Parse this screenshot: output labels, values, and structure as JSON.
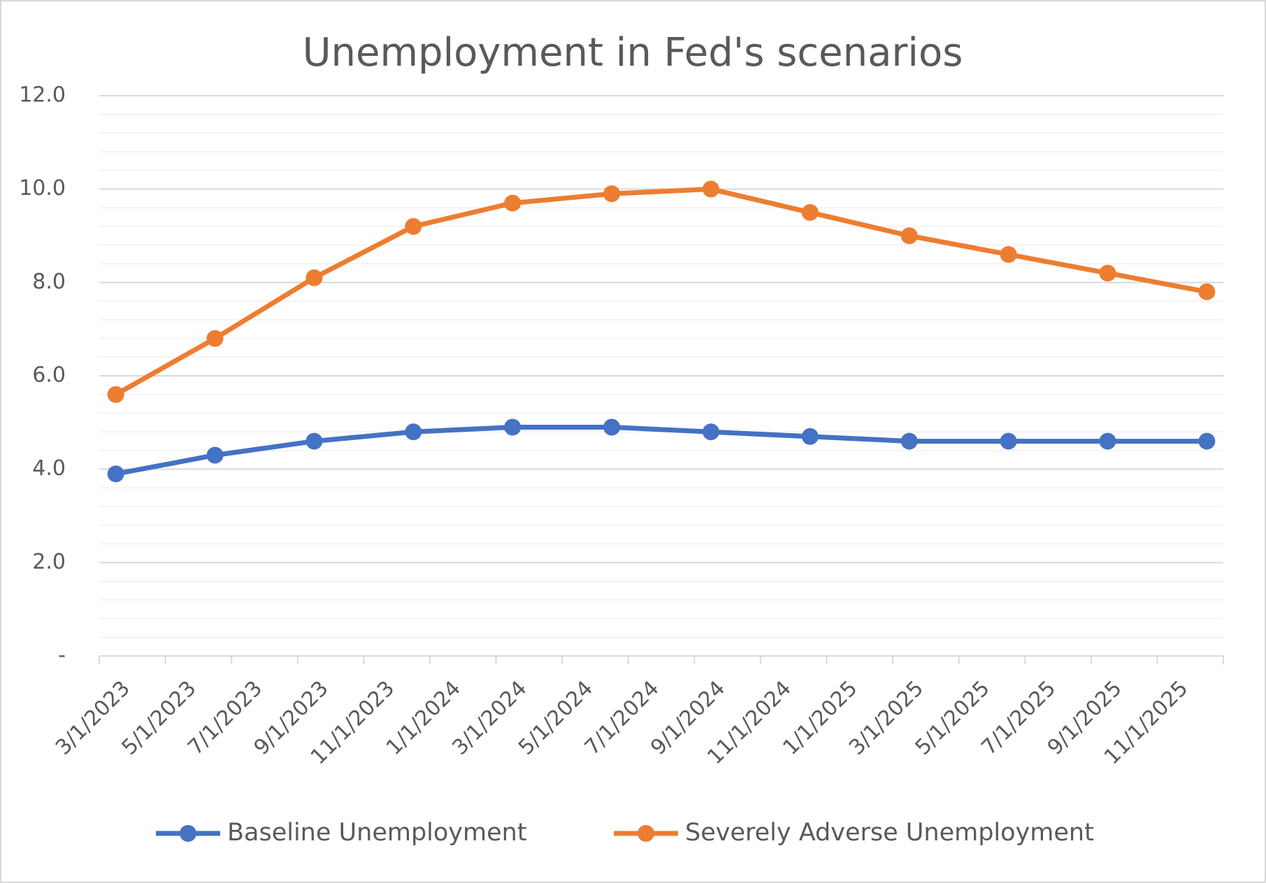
{
  "chart_data": {
    "type": "line",
    "title": "Unemployment in Fed's scenarios",
    "x": [
      "3/1/2023",
      "6/1/2023",
      "9/1/2023",
      "12/1/2023",
      "3/1/2024",
      "6/1/2024",
      "9/1/2024",
      "12/1/2024",
      "3/1/2025",
      "6/1/2025",
      "9/1/2025",
      "12/1/2025"
    ],
    "xlim": [
      "3/1/2023",
      "1/1/2026"
    ],
    "xticks": [
      "3/1/2023",
      "5/1/2023",
      "7/1/2023",
      "9/1/2023",
      "11/1/2023",
      "1/1/2024",
      "3/1/2024",
      "5/1/2024",
      "7/1/2024",
      "9/1/2024",
      "11/1/2024",
      "1/1/2025",
      "3/1/2025",
      "5/1/2025",
      "7/1/2025",
      "9/1/2025",
      "11/1/2025"
    ],
    "series": [
      {
        "name": "Baseline Unemployment",
        "color": "#4472c4",
        "values": [
          3.9,
          4.3,
          4.6,
          4.8,
          4.9,
          4.9,
          4.8,
          4.7,
          4.6,
          4.6,
          4.6,
          4.6
        ]
      },
      {
        "name": "Severely Adverse Unemployment",
        "color": "#ed7d31",
        "values": [
          5.6,
          6.8,
          8.1,
          9.2,
          9.7,
          9.9,
          10.0,
          9.5,
          9.0,
          8.6,
          8.2,
          7.8
        ]
      }
    ],
    "ylim": [
      0,
      12
    ],
    "yticks": [
      {
        "value": 0,
        "label": "-"
      },
      {
        "value": 2,
        "label": "2.0"
      },
      {
        "value": 4,
        "label": "4.0"
      },
      {
        "value": 6,
        "label": "6.0"
      },
      {
        "value": 8,
        "label": "8.0"
      },
      {
        "value": 10,
        "label": "10.0"
      },
      {
        "value": 12,
        "label": "12.0"
      }
    ],
    "grid": true,
    "minor_grid": true,
    "legend": "bottom"
  }
}
